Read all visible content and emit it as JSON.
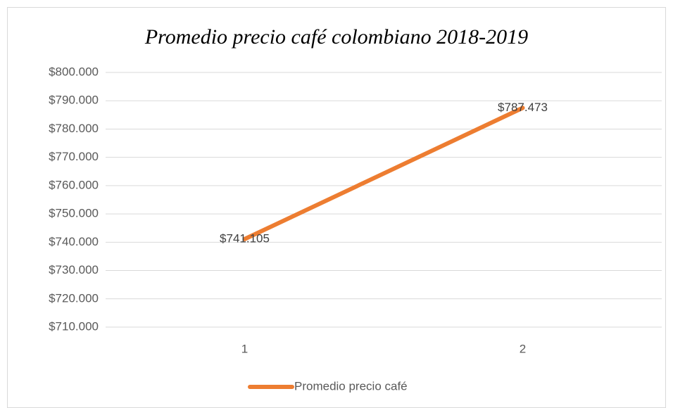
{
  "chart_data": {
    "type": "line",
    "title": "Promedio precio café colombiano 2018-2019",
    "categories": [
      "1",
      "2"
    ],
    "series": [
      {
        "name": "Promedio precio café",
        "color": "#ed7d31",
        "values": [
          741105,
          787473
        ],
        "value_labels": [
          "$741.105",
          "$787.473"
        ]
      }
    ],
    "ylim": [
      710000,
      800000
    ],
    "yticks": [
      {
        "value": 710000,
        "label": "$710.000"
      },
      {
        "value": 720000,
        "label": "$720.000"
      },
      {
        "value": 730000,
        "label": "$730.000"
      },
      {
        "value": 740000,
        "label": "$740.000"
      },
      {
        "value": 750000,
        "label": "$750.000"
      },
      {
        "value": 760000,
        "label": "$760.000"
      },
      {
        "value": 770000,
        "label": "$770.000"
      },
      {
        "value": 780000,
        "label": "$780.000"
      },
      {
        "value": 790000,
        "label": "$790.000"
      },
      {
        "value": 800000,
        "label": "$800.000"
      }
    ],
    "grid": true,
    "legend": "bottom"
  }
}
